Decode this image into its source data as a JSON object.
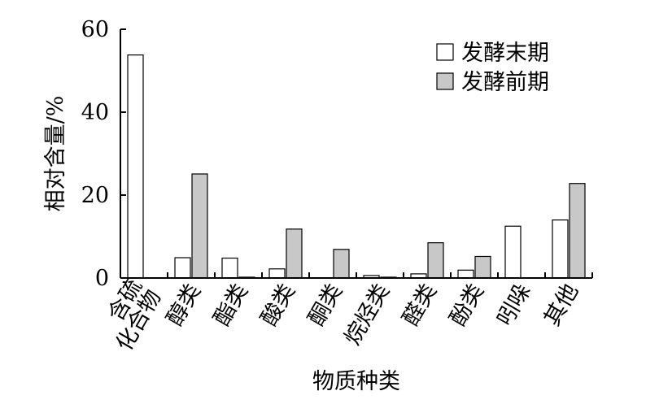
{
  "chart_data": {
    "type": "bar",
    "title": "",
    "xlabel": "物质种类",
    "ylabel": "相对含量/%",
    "ylim": [
      0,
      60
    ],
    "yticks": [
      "0",
      "20",
      "40",
      "60"
    ],
    "grid": false,
    "legend_position": "top-right",
    "categories": [
      [
        "含硫",
        "化合物"
      ],
      [
        "醇类"
      ],
      [
        "酯类"
      ],
      [
        "酸类"
      ],
      [
        "酮类"
      ],
      [
        "烷烃类"
      ],
      [
        "醛类"
      ],
      [
        "酚类"
      ],
      [
        "吲哚"
      ],
      [
        "其他"
      ]
    ],
    "series": [
      {
        "name": "发酵末期",
        "color": "#ffffff",
        "values": [
          53.8,
          4.9,
          4.8,
          2.2,
          0,
          0.6,
          1.0,
          1.9,
          12.5,
          14.0
        ]
      },
      {
        "name": "发酵前期",
        "color": "#c8c8c8",
        "values": [
          0,
          25.1,
          0.2,
          11.8,
          6.9,
          0.2,
          8.5,
          5.2,
          0,
          22.8
        ]
      }
    ]
  }
}
